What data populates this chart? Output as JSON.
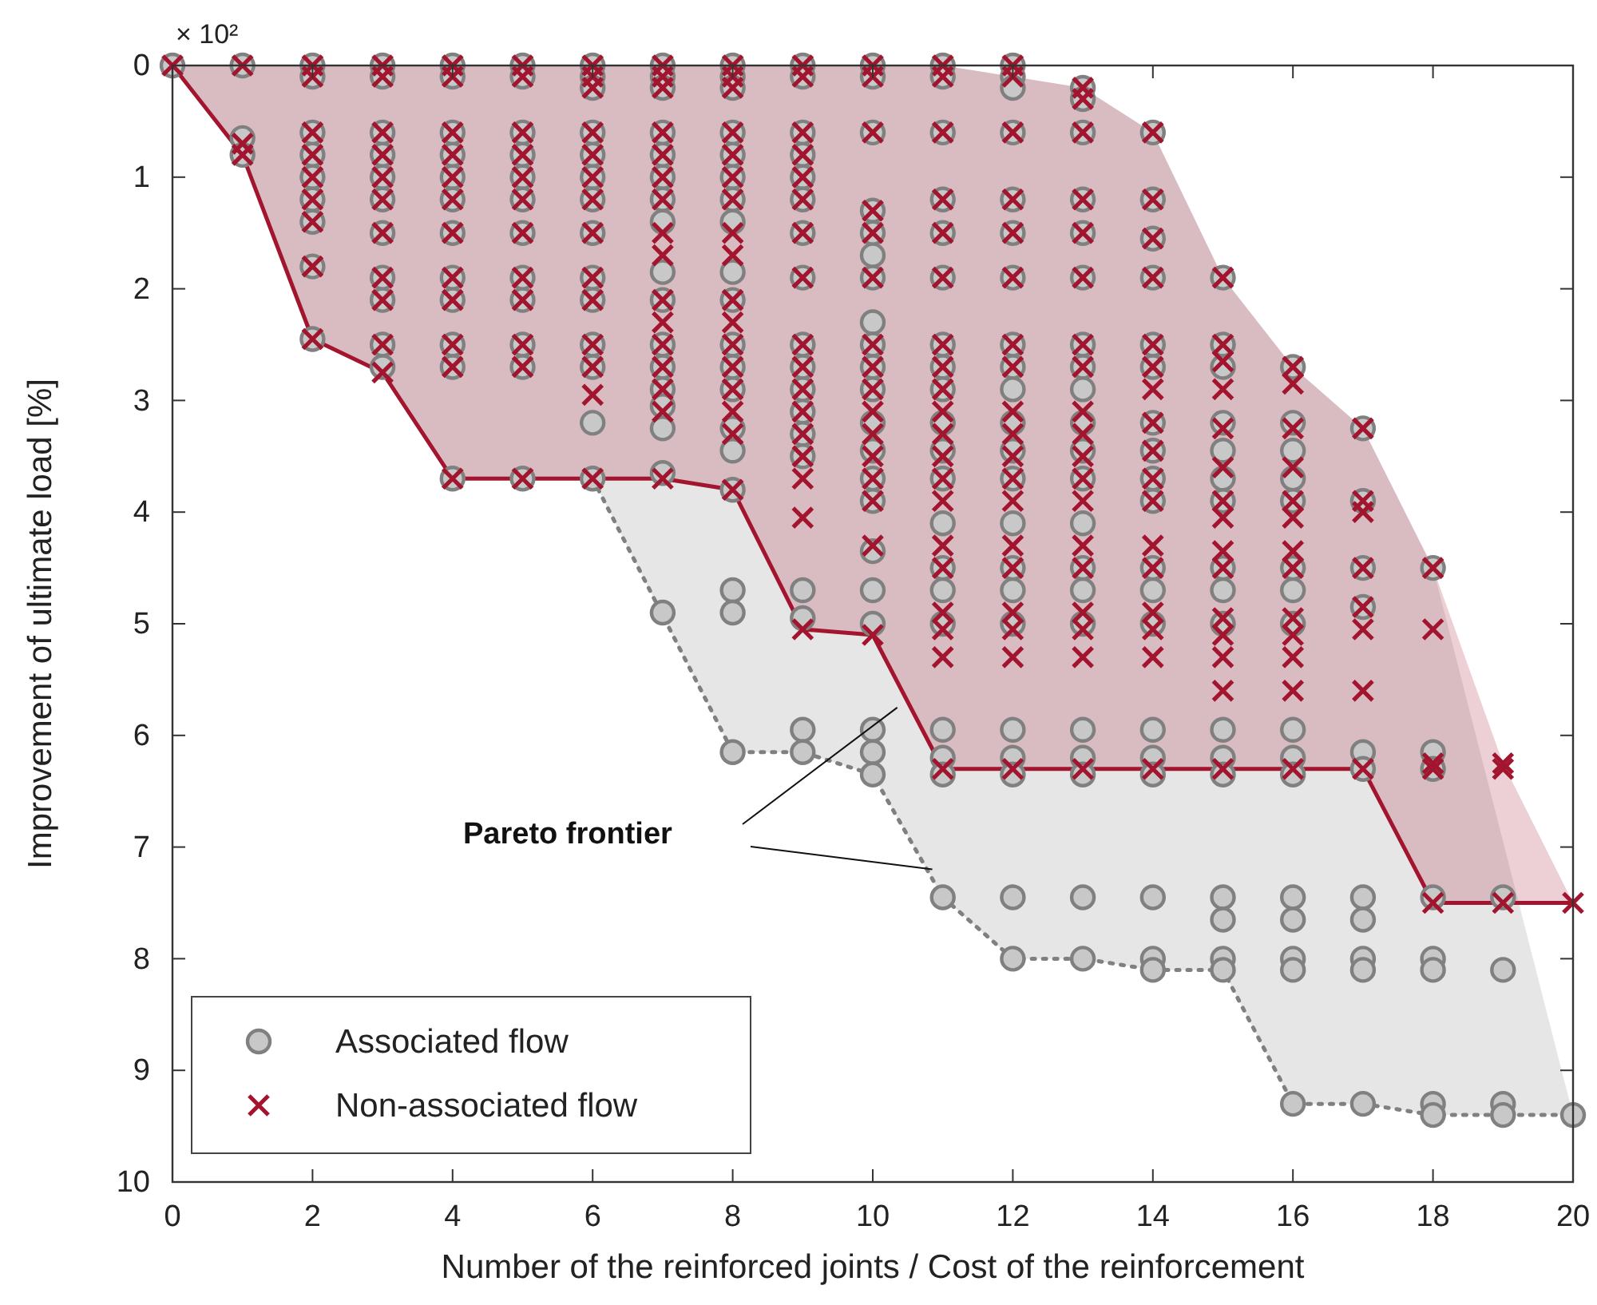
{
  "chart_data": {
    "type": "scatter",
    "xlabel": "Number of the reinforced joints / Cost of the reinforcement",
    "ylabel": "Improvement of ultimate load [%]",
    "annotations": [
      "× 10²",
      "Pareto frontier"
    ],
    "xlim": [
      0,
      20
    ],
    "xticks": [
      0,
      2,
      4,
      6,
      8,
      10,
      12,
      14,
      16,
      18,
      20
    ],
    "ylim": [
      10,
      0
    ],
    "yticks": [
      0,
      1,
      2,
      3,
      4,
      5,
      6,
      7,
      8,
      9,
      10
    ],
    "grid": false,
    "legend": "bottom left",
    "series": [
      {
        "type": "line",
        "color": "#808080",
        "line_style": "dotted",
        "marker": "none",
        "x": [
          0,
          1,
          2,
          3,
          4,
          5,
          6,
          8,
          9,
          10,
          11,
          12,
          13,
          14,
          15,
          16,
          17,
          18,
          19,
          20
        ],
        "values": [
          null,
          null,
          null,
          null,
          null,
          null,
          3.7,
          6.15,
          6.15,
          6.35,
          7.45,
          8.0,
          8.0,
          8.1,
          8.1,
          9.3,
          9.3,
          9.4,
          9.4,
          9.4
        ],
        "lower": [
          0,
          0,
          0,
          0,
          0,
          0,
          0,
          0,
          0,
          0,
          0,
          0.1,
          0.2,
          0.6,
          1.9,
          2.7,
          3.25,
          4.5,
          6.95,
          9.4
        ],
        "upper": [
          0,
          0.8,
          2.45,
          2.75,
          3.7,
          3.7,
          3.7,
          6.15,
          6.15,
          6.35,
          7.45,
          8.0,
          8.0,
          8.1,
          8.1,
          9.3,
          9.3,
          9.4,
          9.4,
          9.4
        ]
      },
      {
        "type": "line",
        "color": "#a3142e",
        "line_style": "solid",
        "marker": "none",
        "x": [
          0,
          1,
          2,
          3,
          4,
          5,
          6,
          7,
          8,
          9,
          10,
          11,
          12,
          13,
          14,
          15,
          16,
          17,
          18,
          19,
          20
        ],
        "values": [
          0,
          0.8,
          2.45,
          2.75,
          3.7,
          3.7,
          3.7,
          3.7,
          3.8,
          5.05,
          5.1,
          6.3,
          6.3,
          6.3,
          6.3,
          6.3,
          6.3,
          6.3,
          7.5,
          7.5,
          7.5
        ],
        "lower": [
          0,
          0,
          0,
          0,
          0,
          0,
          0,
          0,
          0,
          0,
          0,
          0,
          0.1,
          0.2,
          0.6,
          1.9,
          2.7,
          3.25,
          4.5,
          6.25,
          7.5
        ],
        "upper": [
          0,
          0.8,
          2.45,
          2.75,
          3.7,
          3.7,
          3.7,
          3.7,
          3.8,
          5.05,
          5.1,
          6.3,
          6.3,
          6.3,
          6.3,
          6.3,
          6.3,
          6.3,
          7.5,
          7.5,
          7.5
        ]
      },
      {
        "name": "Associated flow",
        "color": "#808080",
        "marker": "circle",
        "x": [
          0,
          1,
          1,
          1,
          2,
          2,
          2,
          2,
          2,
          2,
          2,
          2,
          2,
          3,
          3,
          3,
          3,
          3,
          3,
          3,
          3,
          3,
          3,
          3,
          4,
          4,
          4,
          4,
          4,
          4,
          4,
          4,
          4,
          4,
          4,
          4,
          5,
          5,
          5,
          5,
          5,
          5,
          5,
          5,
          5,
          5,
          5,
          5,
          6,
          6,
          6,
          6,
          6,
          6,
          6,
          6,
          6,
          6,
          6,
          6,
          6,
          6,
          7,
          7,
          7,
          7,
          7,
          7,
          7,
          7,
          7,
          7,
          7,
          7,
          7,
          7,
          7,
          7,
          7,
          8,
          8,
          8,
          8,
          8,
          8,
          8,
          8,
          8,
          8,
          8,
          8,
          8,
          8,
          8,
          8,
          8,
          8,
          8,
          9,
          9,
          9,
          9,
          9,
          9,
          9,
          9,
          9,
          9,
          9,
          9,
          9,
          9,
          9,
          9,
          9,
          9,
          10,
          10,
          10,
          10,
          10,
          10,
          10,
          10,
          10,
          10,
          10,
          10,
          10,
          10,
          10,
          10,
          10,
          10,
          10,
          10,
          10,
          11,
          11,
          11,
          11,
          11,
          11,
          11,
          11,
          11,
          11,
          11,
          11,
          11,
          11,
          11,
          11,
          11,
          11,
          11,
          11,
          12,
          12,
          12,
          12,
          12,
          12,
          12,
          12,
          12,
          12,
          12,
          12,
          12,
          12,
          12,
          12,
          12,
          12,
          12,
          12,
          12,
          12,
          13,
          13,
          13,
          13,
          13,
          13,
          13,
          13,
          13,
          13,
          13,
          13,
          13,
          13,
          13,
          13,
          13,
          13,
          13,
          13,
          13,
          14,
          14,
          14,
          14,
          14,
          14,
          14,
          14,
          14,
          14,
          14,
          14,
          14,
          14,
          14,
          14,
          14,
          14,
          14,
          15,
          15,
          15,
          15,
          15,
          15,
          15,
          15,
          15,
          15,
          15,
          15,
          15,
          15,
          15,
          15,
          15,
          16,
          16,
          16,
          16,
          16,
          16,
          16,
          16,
          16,
          16,
          16,
          16,
          16,
          16,
          16,
          16,
          17,
          17,
          17,
          17,
          17,
          17,
          17,
          17,
          17,
          17,
          17,
          18,
          18,
          18,
          18,
          18,
          18,
          18,
          18,
          19,
          19,
          19,
          19,
          20
        ],
        "values": [
          0,
          0,
          0.65,
          0.8,
          0,
          0.1,
          0.6,
          0.8,
          1.0,
          1.2,
          1.4,
          1.8,
          2.45,
          0,
          0.1,
          0.6,
          0.8,
          1.0,
          1.2,
          1.5,
          1.9,
          2.1,
          2.5,
          2.7,
          0,
          0.1,
          0.6,
          0.8,
          1.0,
          1.2,
          1.5,
          1.9,
          2.1,
          2.5,
          2.7,
          3.7,
          0,
          0.1,
          0.6,
          0.8,
          1.0,
          1.2,
          1.5,
          1.9,
          2.1,
          2.5,
          2.7,
          3.7,
          0,
          0.1,
          0.2,
          0.6,
          0.8,
          1.0,
          1.2,
          1.5,
          1.9,
          2.1,
          2.5,
          2.7,
          3.2,
          3.7,
          0,
          0.1,
          0.2,
          0.6,
          0.8,
          1.0,
          1.2,
          1.4,
          1.85,
          2.1,
          2.5,
          2.7,
          2.9,
          3.05,
          3.25,
          3.65,
          4.9,
          0,
          0.1,
          0.2,
          0.6,
          0.8,
          1.0,
          1.2,
          1.4,
          1.85,
          2.1,
          2.5,
          2.7,
          2.9,
          3.25,
          3.45,
          3.8,
          4.7,
          4.9,
          6.15,
          0,
          0.1,
          0.6,
          0.8,
          1.0,
          1.2,
          1.5,
          1.9,
          2.5,
          2.7,
          2.9,
          3.1,
          3.3,
          3.5,
          4.7,
          4.95,
          5.95,
          6.15,
          0,
          0.1,
          0.6,
          1.3,
          1.5,
          1.7,
          1.9,
          2.3,
          2.5,
          2.7,
          2.9,
          3.2,
          3.45,
          3.7,
          3.9,
          4.35,
          4.7,
          5.0,
          5.95,
          6.15,
          6.35,
          0,
          0.1,
          0.6,
          1.2,
          1.5,
          1.9,
          2.5,
          2.7,
          2.9,
          3.2,
          3.45,
          3.7,
          4.1,
          4.5,
          4.7,
          5.0,
          5.95,
          6.2,
          6.35,
          7.45,
          0,
          0.1,
          0.2,
          0.6,
          1.2,
          1.5,
          1.9,
          2.5,
          2.7,
          2.9,
          3.2,
          3.45,
          3.7,
          4.1,
          4.5,
          4.7,
          5.0,
          5.95,
          6.2,
          6.35,
          7.45,
          8.0,
          0.2,
          0.3,
          0.6,
          1.2,
          1.5,
          1.9,
          2.5,
          2.7,
          2.9,
          3.2,
          3.45,
          3.7,
          4.1,
          4.5,
          4.7,
          5.0,
          5.95,
          6.2,
          6.35,
          7.45,
          8.0,
          0.6,
          1.2,
          1.55,
          1.9,
          2.5,
          2.7,
          3.2,
          3.45,
          3.7,
          3.9,
          4.5,
          4.7,
          5.0,
          5.95,
          6.2,
          6.35,
          7.45,
          8.0,
          8.1,
          1.9,
          2.5,
          2.7,
          3.2,
          3.45,
          3.7,
          3.9,
          4.5,
          4.7,
          5.0,
          5.95,
          6.2,
          6.35,
          7.45,
          7.65,
          8.0,
          8.1,
          2.7,
          3.2,
          3.45,
          3.7,
          3.9,
          4.5,
          4.7,
          5.0,
          5.95,
          6.2,
          6.35,
          7.45,
          7.65,
          8.0,
          8.1,
          9.3,
          3.25,
          3.9,
          4.5,
          4.85,
          6.15,
          6.3,
          7.45,
          7.65,
          8.0,
          8.1,
          9.3,
          4.5,
          6.15,
          6.3,
          7.45,
          8.0,
          8.1,
          9.3,
          9.4,
          7.45,
          8.1,
          9.3,
          9.4,
          9.4
        ]
      },
      {
        "name": "Non-associated flow",
        "color": "#a3142e",
        "marker": "cross",
        "x": [
          0,
          1,
          1,
          1,
          2,
          2,
          2,
          2,
          2,
          2,
          2,
          2,
          2,
          3,
          3,
          3,
          3,
          3,
          3,
          3,
          3,
          3,
          3,
          3,
          4,
          4,
          4,
          4,
          4,
          4,
          4,
          4,
          4,
          4,
          4,
          4,
          5,
          5,
          5,
          5,
          5,
          5,
          5,
          5,
          5,
          5,
          5,
          5,
          6,
          6,
          6,
          6,
          6,
          6,
          6,
          6,
          6,
          6,
          6,
          6,
          6,
          6,
          7,
          7,
          7,
          7,
          7,
          7,
          7,
          7,
          7,
          7,
          7,
          7,
          7,
          7,
          7,
          7,
          8,
          8,
          8,
          8,
          8,
          8,
          8,
          8,
          8,
          8,
          8,
          8,
          8,
          8,
          8,
          8,
          8,
          9,
          9,
          9,
          9,
          9,
          9,
          9,
          9,
          9,
          9,
          9,
          9,
          9,
          9,
          9,
          9,
          9,
          10,
          10,
          10,
          10,
          10,
          10,
          10,
          10,
          10,
          10,
          10,
          10,
          10,
          10,
          10,
          10,
          11,
          11,
          11,
          11,
          11,
          11,
          11,
          11,
          11,
          11,
          11,
          11,
          11,
          11,
          11,
          11,
          11,
          11,
          11,
          11,
          12,
          12,
          12,
          12,
          12,
          12,
          12,
          12,
          12,
          12,
          12,
          12,
          12,
          12,
          12,
          12,
          12,
          12,
          12,
          13,
          13,
          13,
          13,
          13,
          13,
          13,
          13,
          13,
          13,
          13,
          13,
          13,
          13,
          13,
          13,
          13,
          13,
          13,
          14,
          14,
          14,
          14,
          14,
          14,
          14,
          14,
          14,
          14,
          14,
          14,
          14,
          14,
          14,
          14,
          14,
          15,
          15,
          15,
          15,
          15,
          15,
          15,
          15,
          15,
          15,
          15,
          15,
          15,
          15,
          15,
          16,
          16,
          16,
          16,
          16,
          16,
          16,
          16,
          16,
          16,
          16,
          16,
          16,
          17,
          17,
          17,
          17,
          17,
          17,
          17,
          17,
          18,
          18,
          18,
          18,
          18,
          19,
          19,
          19,
          20
        ],
        "values": [
          0,
          0,
          0.7,
          0.8,
          0,
          0.1,
          0.6,
          0.8,
          1.0,
          1.2,
          1.4,
          1.8,
          2.45,
          0,
          0.1,
          0.6,
          0.8,
          1.0,
          1.2,
          1.5,
          1.9,
          2.1,
          2.5,
          2.75,
          0,
          0.1,
          0.6,
          0.8,
          1.0,
          1.2,
          1.5,
          1.9,
          2.1,
          2.5,
          2.7,
          3.7,
          0,
          0.1,
          0.6,
          0.8,
          1.0,
          1.2,
          1.5,
          1.9,
          2.1,
          2.5,
          2.7,
          3.7,
          0,
          0.1,
          0.2,
          0.6,
          0.8,
          1.0,
          1.2,
          1.5,
          1.9,
          2.1,
          2.5,
          2.7,
          2.95,
          3.7,
          0,
          0.1,
          0.2,
          0.6,
          0.8,
          1.0,
          1.2,
          1.5,
          1.7,
          2.1,
          2.3,
          2.5,
          2.7,
          2.9,
          3.1,
          3.7,
          0,
          0.1,
          0.2,
          0.6,
          0.8,
          1.0,
          1.2,
          1.5,
          1.7,
          2.1,
          2.3,
          2.5,
          2.7,
          2.9,
          3.1,
          3.3,
          3.8,
          0,
          0.1,
          0.6,
          0.8,
          1.0,
          1.2,
          1.5,
          1.9,
          2.5,
          2.7,
          2.9,
          3.1,
          3.3,
          3.5,
          3.7,
          4.05,
          5.05,
          0,
          0.1,
          0.6,
          1.3,
          1.5,
          1.9,
          2.5,
          2.7,
          2.9,
          3.1,
          3.3,
          3.5,
          3.7,
          3.9,
          4.3,
          5.1,
          0,
          0.1,
          0.6,
          1.2,
          1.5,
          1.9,
          2.5,
          2.7,
          2.9,
          3.1,
          3.3,
          3.5,
          3.7,
          3.9,
          4.3,
          4.5,
          4.9,
          5.05,
          5.3,
          6.3,
          0,
          0.1,
          0.6,
          1.2,
          1.5,
          1.9,
          2.5,
          2.7,
          3.1,
          3.3,
          3.5,
          3.7,
          3.9,
          4.3,
          4.5,
          4.9,
          5.05,
          5.3,
          6.3,
          0.2,
          0.3,
          0.6,
          1.2,
          1.5,
          1.9,
          2.5,
          2.7,
          3.1,
          3.3,
          3.5,
          3.7,
          3.9,
          4.3,
          4.5,
          4.9,
          5.05,
          5.3,
          6.3,
          0.6,
          1.2,
          1.55,
          1.9,
          2.5,
          2.7,
          2.9,
          3.2,
          3.45,
          3.7,
          3.9,
          4.3,
          4.5,
          4.9,
          5.05,
          5.3,
          6.3,
          1.9,
          2.5,
          2.65,
          2.9,
          3.25,
          3.6,
          3.9,
          4.05,
          4.35,
          4.5,
          4.95,
          5.1,
          5.3,
          5.6,
          6.3,
          2.7,
          2.85,
          3.25,
          3.6,
          3.9,
          4.05,
          4.35,
          4.5,
          4.95,
          5.1,
          5.3,
          5.6,
          6.3,
          3.25,
          3.9,
          4.0,
          4.5,
          4.85,
          5.05,
          5.6,
          6.3,
          4.5,
          5.05,
          6.25,
          6.3,
          7.5,
          6.25,
          6.3,
          7.5,
          7.5
        ]
      }
    ]
  }
}
